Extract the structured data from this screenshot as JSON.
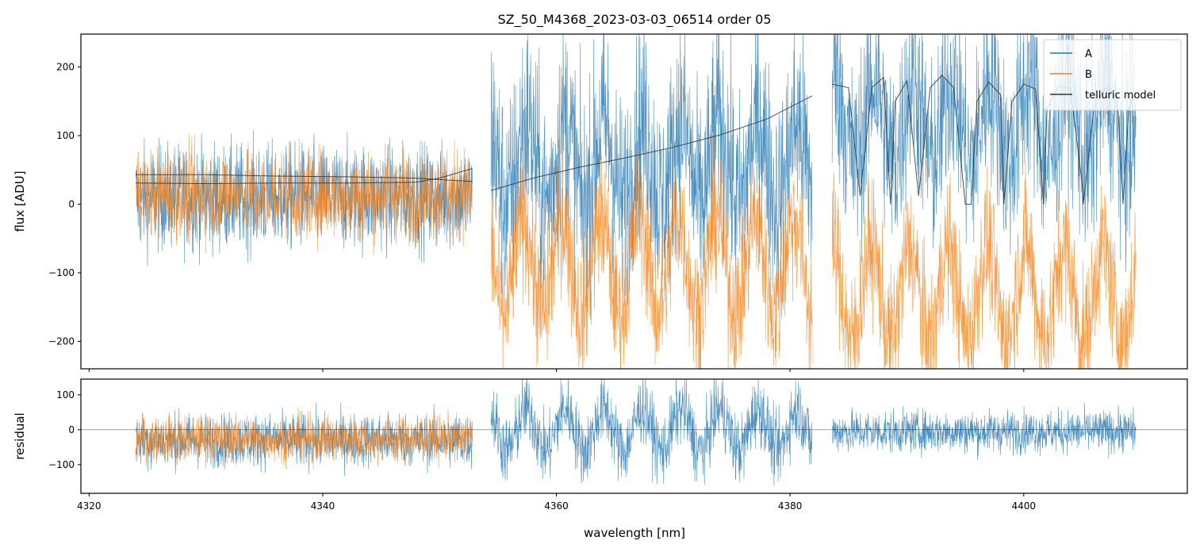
{
  "chart_data": [
    {
      "type": "line",
      "panel": "top",
      "title": "SZ_50_M4368_2023-03-03_06514  order 05",
      "xlabel": "",
      "ylabel": "flux [ADU]",
      "xlim": [
        4319.3,
        4414.0
      ],
      "ylim": [
        -240,
        248
      ],
      "xticks": [
        4320,
        4340,
        4360,
        4380,
        4400
      ],
      "yticks": [
        -200,
        -100,
        0,
        100,
        200
      ],
      "ytick_labels": [
        "−200",
        "−100",
        "0",
        "100",
        "200"
      ],
      "legend": {
        "position": "top-right",
        "entries": [
          "A",
          "B",
          "telluric model"
        ]
      },
      "colors": {
        "A": "#1f77b4",
        "B": "#ff7f0e",
        "telluric model": "#333333"
      },
      "segments": [
        {
          "x": [
            4324.0,
            4352.8
          ],
          "A_mean": 10,
          "A_spread": 70,
          "B_mean": 15,
          "B_spread": 60
        },
        {
          "x": [
            4354.4,
            4381.9
          ],
          "A_mean": 60,
          "A_spread": 140,
          "B_mean": -90,
          "B_spread": 90
        },
        {
          "x": [
            4383.6,
            4409.6
          ],
          "A_mean": 120,
          "A_spread": 130,
          "B_mean": -130,
          "B_spread": 90
        }
      ],
      "series": [
        {
          "name": "telluric model A (seg1)",
          "x": [
            4324,
            4330,
            4336,
            4342,
            4348,
            4350,
            4352.8
          ],
          "y": [
            31,
            30,
            31,
            31,
            32,
            38,
            52
          ]
        },
        {
          "name": "telluric model B (seg1)",
          "x": [
            4324,
            4330,
            4336,
            4342,
            4348,
            4352.8
          ],
          "y": [
            43,
            43,
            41,
            40,
            38,
            33
          ]
        },
        {
          "name": "telluric model (seg2)",
          "x": [
            4354.4,
            4358,
            4362,
            4366,
            4370,
            4374,
            4378,
            4381.9
          ],
          "y": [
            20,
            38,
            54,
            68,
            83,
            101,
            124,
            158
          ]
        },
        {
          "name": "telluric model (seg3)",
          "x": [
            4383.6,
            4385,
            4386,
            4387,
            4388,
            4388.6,
            4389,
            4390,
            4391,
            4392,
            4393,
            4394,
            4395,
            4395.5,
            4396,
            4397,
            4398,
            4398.3,
            4399,
            4400,
            4401,
            4401.7,
            4402,
            4403,
            4404,
            4405,
            4405.1,
            4406,
            4407,
            4408,
            4408.5,
            4409,
            4409.6
          ],
          "y": [
            175,
            170,
            12,
            170,
            185,
            0,
            150,
            180,
            12,
            170,
            188,
            170,
            0,
            0,
            150,
            178,
            160,
            0,
            150,
            175,
            168,
            0,
            140,
            172,
            168,
            30,
            0,
            140,
            170,
            160,
            0,
            140,
            165
          ]
        }
      ]
    },
    {
      "type": "line",
      "panel": "bottom",
      "xlabel": "wavelength [nm]",
      "ylabel": "residual",
      "xlim": [
        4319.3,
        4414.0
      ],
      "ylim": [
        -182,
        145
      ],
      "xticks": [
        4320,
        4340,
        4360,
        4380,
        4400
      ],
      "xtick_labels": [
        "4320",
        "4340",
        "4360",
        "4380",
        "4400"
      ],
      "yticks": [
        -100,
        0,
        100
      ],
      "ytick_labels": [
        "−100",
        "0",
        "100"
      ],
      "zero_line": 0,
      "segments": [
        {
          "x": [
            4324.0,
            4352.8
          ],
          "A_mean": -30,
          "A_spread": 70,
          "B_mean": -25,
          "B_spread": 60
        },
        {
          "x": [
            4354.4,
            4381.9
          ],
          "A_mean": 0,
          "A_spread": 90
        },
        {
          "x": [
            4383.6,
            4409.6
          ],
          "A_mean": -5,
          "A_spread": 55
        }
      ]
    }
  ]
}
